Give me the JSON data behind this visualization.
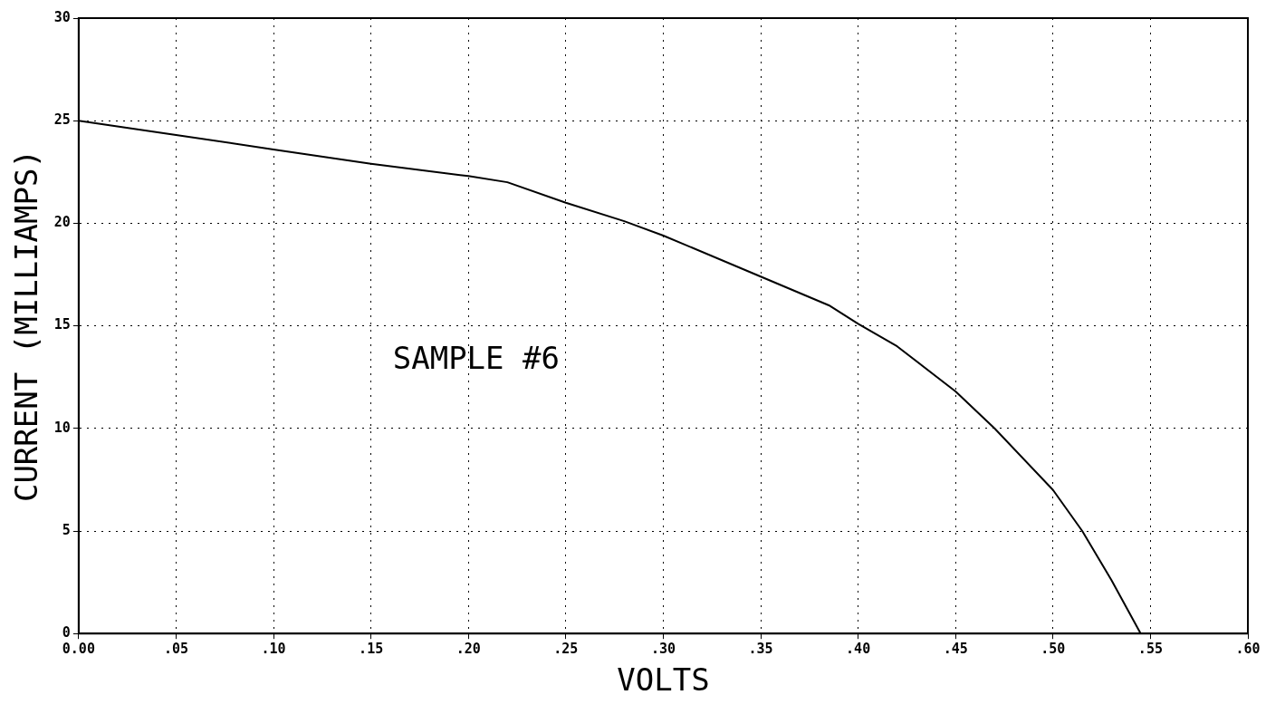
{
  "chart_data": {
    "type": "line",
    "xlabel": "VOLTS",
    "ylabel": "CURRENT (MILLIAMPS)",
    "annotations": [
      "SAMPLE #6"
    ],
    "x": [
      0,
      0.05,
      0.1,
      0.15,
      0.2,
      0.22,
      0.25,
      0.28,
      0.3,
      0.35,
      0.385,
      0.4,
      0.42,
      0.45,
      0.47,
      0.5,
      0.515,
      0.53,
      0.545
    ],
    "series": [
      {
        "color": "#000000",
        "values": [
          25,
          24.3,
          23.6,
          22.9,
          22.3,
          22,
          21,
          20.1,
          19.4,
          17.4,
          16,
          15.1,
          14,
          11.8,
          10,
          7,
          5,
          2.6,
          0
        ]
      }
    ],
    "xlim": [
      0,
      0.6
    ],
    "ylim": [
      0,
      30
    ],
    "xticks": [
      {
        "value": 0,
        "label": "0.00"
      },
      {
        "value": 0.05,
        "label": ".05"
      },
      {
        "value": 0.1,
        "label": ".10"
      },
      {
        "value": 0.15,
        "label": ".15"
      },
      {
        "value": 0.2,
        "label": ".20"
      },
      {
        "value": 0.25,
        "label": ".25"
      },
      {
        "value": 0.3,
        "label": ".30"
      },
      {
        "value": 0.35,
        "label": ".35"
      },
      {
        "value": 0.4,
        "label": ".40"
      },
      {
        "value": 0.45,
        "label": ".45"
      },
      {
        "value": 0.5,
        "label": ".50"
      },
      {
        "value": 0.55,
        "label": ".55"
      },
      {
        "value": 0.6,
        "label": ".60"
      }
    ],
    "yticks": [
      0,
      5,
      10,
      15,
      20,
      25,
      30
    ],
    "grid": true,
    "marker": "none",
    "line_style": "solid",
    "legend": false
  }
}
